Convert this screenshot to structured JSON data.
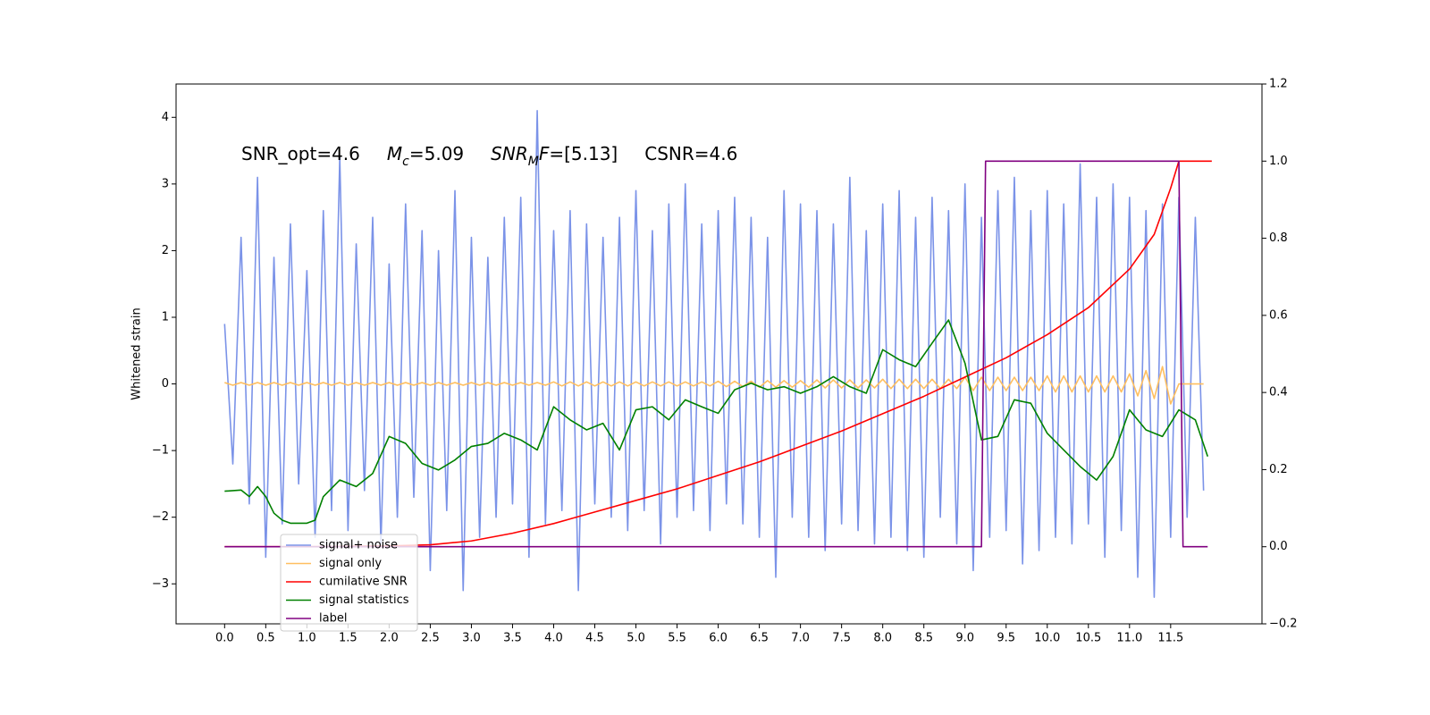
{
  "chart_data": {
    "type": "line",
    "ylabel": "Whitened strain",
    "annotations": [
      [
        {
          "text": "SNR_opt=4.6"
        }
      ],
      [
        {
          "text": "M",
          "italic": true
        },
        {
          "text": "c",
          "italic": true,
          "sub": true
        },
        {
          "text": "=5.09"
        }
      ],
      [
        {
          "text": "SNR",
          "italic": true
        },
        {
          "text": "M",
          "italic": true,
          "sub": true
        },
        {
          "text": "F",
          "italic": true
        },
        {
          "text": "=[5.13]"
        }
      ],
      [
        {
          "text": "CSNR=4.6"
        }
      ]
    ],
    "xlim": [
      -0.59,
      12.61
    ],
    "xticks": [
      {
        "value": 0,
        "label": "0.0"
      },
      0.5,
      {
        "value": 1,
        "label": "1.0"
      },
      1.5,
      {
        "value": 2,
        "label": "2.0"
      },
      2.5,
      {
        "value": 3,
        "label": "3.0"
      },
      3.5,
      {
        "value": 4,
        "label": "4.0"
      },
      4.5,
      {
        "value": 5,
        "label": "5.0"
      },
      5.5,
      {
        "value": 6,
        "label": "6.0"
      },
      6.5,
      {
        "value": 7,
        "label": "7.0"
      },
      7.5,
      {
        "value": 8,
        "label": "8.0"
      },
      8.5,
      {
        "value": 9,
        "label": "9.0"
      },
      9.5,
      {
        "value": 10,
        "label": "10.0"
      },
      10.5,
      {
        "value": 11,
        "label": "11.0"
      },
      11.5
    ],
    "ylim": [
      -3.6,
      4.5
    ],
    "yticks": [
      {
        "value": -3,
        "label": "−3"
      },
      {
        "value": -2,
        "label": "−2"
      },
      {
        "value": -1,
        "label": "−1"
      },
      0,
      1,
      2,
      3,
      4
    ],
    "y2lim": [
      -0.2,
      1.2
    ],
    "y2ticks": [
      {
        "value": -0.2,
        "label": "−0.2"
      },
      {
        "value": 0,
        "label": "0.0"
      },
      0.2,
      0.4,
      0.6,
      0.8,
      {
        "value": 1,
        "label": "1.0"
      },
      1.2
    ],
    "grid": false,
    "legend": "lower left",
    "series": [
      {
        "name": "signal+ noise",
        "color": "#7b93e8",
        "x": [
          0,
          0.1,
          0.2,
          0.3,
          0.4,
          0.5,
          0.6,
          0.7,
          0.8,
          0.9,
          1,
          1.1,
          1.2,
          1.3,
          1.4,
          1.5,
          1.6,
          1.7,
          1.8,
          1.9,
          2,
          2.1,
          2.2,
          2.3,
          2.4,
          2.5,
          2.6,
          2.7,
          2.8,
          2.9,
          3,
          3.1,
          3.2,
          3.3,
          3.4,
          3.5,
          3.6,
          3.7,
          3.8,
          3.9,
          4,
          4.1,
          4.2,
          4.3,
          4.4,
          4.5,
          4.6,
          4.7,
          4.8,
          4.9,
          5,
          5.1,
          5.2,
          5.3,
          5.4,
          5.5,
          5.6,
          5.7,
          5.8,
          5.9,
          6,
          6.1,
          6.2,
          6.3,
          6.4,
          6.5,
          6.6,
          6.7,
          6.8,
          6.9,
          7,
          7.1,
          7.2,
          7.3,
          7.4,
          7.5,
          7.6,
          7.7,
          7.8,
          7.9,
          8,
          8.1,
          8.2,
          8.3,
          8.4,
          8.5,
          8.6,
          8.7,
          8.8,
          8.9,
          9,
          9.1,
          9.2,
          9.3,
          9.4,
          9.5,
          9.6,
          9.7,
          9.8,
          9.9,
          10,
          10.1,
          10.2,
          10.3,
          10.4,
          10.5,
          10.6,
          10.7,
          10.8,
          10.9,
          11,
          11.1,
          11.2,
          11.3,
          11.4,
          11.5,
          11.6,
          11.7,
          11.8,
          11.9
        ],
        "values": [
          0.9,
          -1.2,
          2.2,
          -1.8,
          3.1,
          -2.6,
          1.9,
          -2.1,
          2.4,
          -1.5,
          1.7,
          -2.3,
          2.6,
          -1.9,
          3.4,
          -2.2,
          2.1,
          -1.6,
          2.5,
          -2.4,
          1.8,
          -2.0,
          2.7,
          -1.7,
          2.3,
          -2.8,
          2.0,
          -1.9,
          2.9,
          -3.1,
          2.2,
          -2.3,
          1.9,
          -2.0,
          2.5,
          -1.8,
          2.8,
          -2.6,
          4.1,
          -2.1,
          2.3,
          -1.9,
          2.6,
          -3.1,
          2.4,
          -1.8,
          2.2,
          -2.0,
          2.5,
          -2.2,
          2.9,
          -1.9,
          2.3,
          -2.4,
          2.7,
          -2.0,
          3.0,
          -1.9,
          2.4,
          -2.2,
          2.6,
          -1.8,
          2.8,
          -2.1,
          2.5,
          -2.3,
          2.2,
          -2.9,
          2.9,
          -2.0,
          2.7,
          -2.3,
          2.6,
          -2.5,
          2.4,
          -2.1,
          3.1,
          -2.2,
          2.3,
          -2.4,
          2.7,
          -2.3,
          2.9,
          -2.5,
          2.5,
          -2.6,
          2.8,
          -2.0,
          2.6,
          -2.4,
          3.0,
          -2.8,
          2.5,
          -2.3,
          2.9,
          -2.2,
          3.1,
          -2.7,
          2.6,
          -2.5,
          2.9,
          -2.3,
          2.7,
          -2.4,
          3.3,
          -2.1,
          2.8,
          -2.6,
          3.0,
          -2.2,
          2.8,
          -2.9,
          2.6,
          -3.2,
          2.7,
          -2.3,
          2.8,
          -2.0,
          2.5,
          -1.6
        ]
      },
      {
        "name": "signal only",
        "color": "#ffbf60",
        "x": [
          0,
          0.1,
          0.2,
          0.3,
          0.4,
          0.5,
          0.6,
          0.7,
          0.8,
          0.9,
          1,
          1.1,
          1.2,
          1.3,
          1.4,
          1.5,
          1.6,
          1.7,
          1.8,
          1.9,
          2,
          2.1,
          2.2,
          2.3,
          2.4,
          2.5,
          2.6,
          2.7,
          2.8,
          2.9,
          3,
          3.1,
          3.2,
          3.3,
          3.4,
          3.5,
          3.6,
          3.7,
          3.8,
          3.9,
          4,
          4.1,
          4.2,
          4.3,
          4.4,
          4.5,
          4.6,
          4.7,
          4.8,
          4.9,
          5,
          5.1,
          5.2,
          5.3,
          5.4,
          5.5,
          5.6,
          5.7,
          5.8,
          5.9,
          6,
          6.1,
          6.2,
          6.3,
          6.4,
          6.5,
          6.6,
          6.7,
          6.8,
          6.9,
          7,
          7.1,
          7.2,
          7.3,
          7.4,
          7.5,
          7.6,
          7.7,
          7.8,
          7.9,
          8,
          8.1,
          8.2,
          8.3,
          8.4,
          8.5,
          8.6,
          8.7,
          8.8,
          8.9,
          9,
          9.1,
          9.2,
          9.3,
          9.4,
          9.5,
          9.6,
          9.7,
          9.8,
          9.9,
          10,
          10.1,
          10.2,
          10.3,
          10.4,
          10.5,
          10.6,
          10.7,
          10.8,
          10.9,
          11,
          11.1,
          11.2,
          11.3,
          11.4,
          11.5,
          11.6,
          11.7,
          11.8,
          11.9
        ],
        "values": [
          0.02,
          -0.02,
          0.02,
          -0.02,
          0.02,
          -0.02,
          0.02,
          -0.02,
          0.02,
          -0.02,
          0.02,
          -0.02,
          0.02,
          -0.02,
          0.02,
          -0.02,
          0.02,
          -0.02,
          0.02,
          -0.02,
          0.02,
          -0.02,
          0.02,
          -0.02,
          0.02,
          -0.02,
          0.02,
          -0.02,
          0.02,
          -0.02,
          0.02,
          -0.02,
          0.02,
          -0.02,
          0.02,
          -0.02,
          0.02,
          -0.02,
          0.02,
          -0.02,
          0.03,
          -0.03,
          0.03,
          -0.03,
          0.03,
          -0.03,
          0.03,
          -0.03,
          0.03,
          -0.03,
          0.03,
          -0.03,
          0.03,
          -0.03,
          0.03,
          -0.03,
          0.03,
          -0.03,
          0.03,
          -0.03,
          0.04,
          -0.04,
          0.04,
          -0.04,
          0.04,
          -0.05,
          0.05,
          -0.05,
          0.05,
          -0.05,
          0.05,
          -0.05,
          0.06,
          -0.06,
          0.06,
          -0.06,
          0.06,
          -0.06,
          0.06,
          -0.06,
          0.07,
          -0.07,
          0.07,
          -0.07,
          0.07,
          -0.07,
          0.07,
          -0.07,
          0.07,
          -0.07,
          0.1,
          -0.1,
          0.1,
          -0.1,
          0.1,
          -0.1,
          0.1,
          -0.1,
          0.1,
          -0.1,
          0.12,
          -0.12,
          0.12,
          -0.12,
          0.12,
          -0.12,
          0.12,
          -0.12,
          0.12,
          -0.12,
          0.15,
          -0.18,
          0.2,
          -0.22,
          0.26,
          -0.3,
          0,
          0,
          0,
          0
        ]
      },
      {
        "name": "cumilative SNR",
        "color": "#ff0000",
        "axis": "y2",
        "x": [
          0,
          1,
          2,
          2.5,
          3,
          3.5,
          4,
          4.5,
          5,
          5.5,
          6,
          6.5,
          7,
          7.5,
          8,
          8.5,
          9,
          9.5,
          10,
          10.5,
          11,
          11.3,
          11.5,
          11.6,
          12
        ],
        "values": [
          0,
          0,
          0.002,
          0.005,
          0.015,
          0.035,
          0.06,
          0.09,
          0.12,
          0.15,
          0.185,
          0.22,
          0.26,
          0.3,
          0.345,
          0.39,
          0.44,
          0.49,
          0.55,
          0.62,
          0.72,
          0.81,
          0.93,
          1.0,
          1.0
        ]
      },
      {
        "name": "signal statistics",
        "color": "#008000",
        "axis": "y2",
        "x": [
          0,
          0.2,
          0.3,
          0.4,
          0.5,
          0.6,
          0.7,
          0.8,
          1,
          1.1,
          1.2,
          1.4,
          1.6,
          1.8,
          2,
          2.2,
          2.4,
          2.6,
          2.8,
          3,
          3.2,
          3.4,
          3.6,
          3.8,
          4,
          4.2,
          4.4,
          4.6,
          4.8,
          5,
          5.2,
          5.4,
          5.6,
          5.8,
          6,
          6.2,
          6.4,
          6.6,
          6.8,
          7,
          7.2,
          7.4,
          7.6,
          7.8,
          8,
          8.2,
          8.4,
          8.6,
          8.8,
          9,
          9.2,
          9.4,
          9.6,
          9.8,
          10,
          10.2,
          10.4,
          10.6,
          10.8,
          11,
          11.2,
          11.4,
          11.6,
          11.8,
          11.95
        ],
        "values": [
          0.144,
          0.147,
          0.13,
          0.156,
          0.13,
          0.087,
          0.069,
          0.061,
          0.061,
          0.069,
          0.13,
          0.173,
          0.156,
          0.19,
          0.286,
          0.268,
          0.216,
          0.199,
          0.225,
          0.26,
          0.268,
          0.294,
          0.277,
          0.251,
          0.363,
          0.329,
          0.303,
          0.32,
          0.251,
          0.355,
          0.363,
          0.329,
          0.381,
          0.363,
          0.346,
          0.407,
          0.424,
          0.407,
          0.415,
          0.398,
          0.415,
          0.441,
          0.415,
          0.398,
          0.511,
          0.485,
          0.467,
          0.528,
          0.588,
          0.476,
          0.277,
          0.286,
          0.381,
          0.372,
          0.294,
          0.251,
          0.208,
          0.173,
          0.234,
          0.355,
          0.303,
          0.286,
          0.355,
          0.329,
          0.234
        ]
      },
      {
        "name": "label",
        "color": "#800080",
        "axis": "y2",
        "x": [
          0,
          9.2,
          9.25,
          11.6,
          11.65,
          11.95
        ],
        "values": [
          0,
          0,
          1,
          1,
          0,
          0
        ]
      }
    ]
  }
}
